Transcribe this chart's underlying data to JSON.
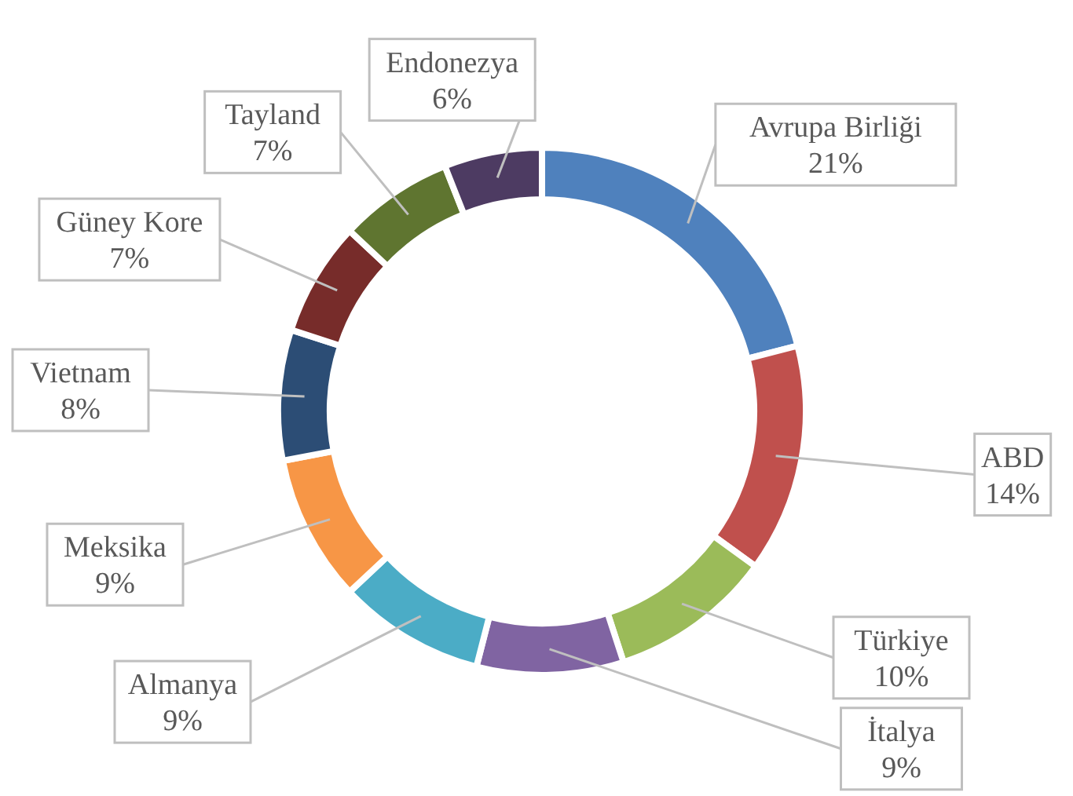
{
  "chart_data": {
    "type": "donut",
    "categories": [
      "Avrupa Birliği",
      "ABD",
      "Türkiye",
      "İtalya",
      "Almanya",
      "Meksika",
      "Vietnam",
      "Güney Kore",
      "Tayland",
      "Endonezya"
    ],
    "values": [
      21,
      14,
      10,
      9,
      9,
      9,
      8,
      7,
      7,
      6
    ],
    "value_labels": [
      "21%",
      "14%",
      "10%",
      "9%",
      "9%",
      "9%",
      "8%",
      "7%",
      "7%",
      "6%"
    ],
    "colors": [
      "#4f81bd",
      "#c0504d",
      "#9bbb59",
      "#8064a2",
      "#4bacc6",
      "#f79646",
      "#2c4d75",
      "#772c2a",
      "#5f7530",
      "#4d3b62"
    ],
    "legend": false
  }
}
